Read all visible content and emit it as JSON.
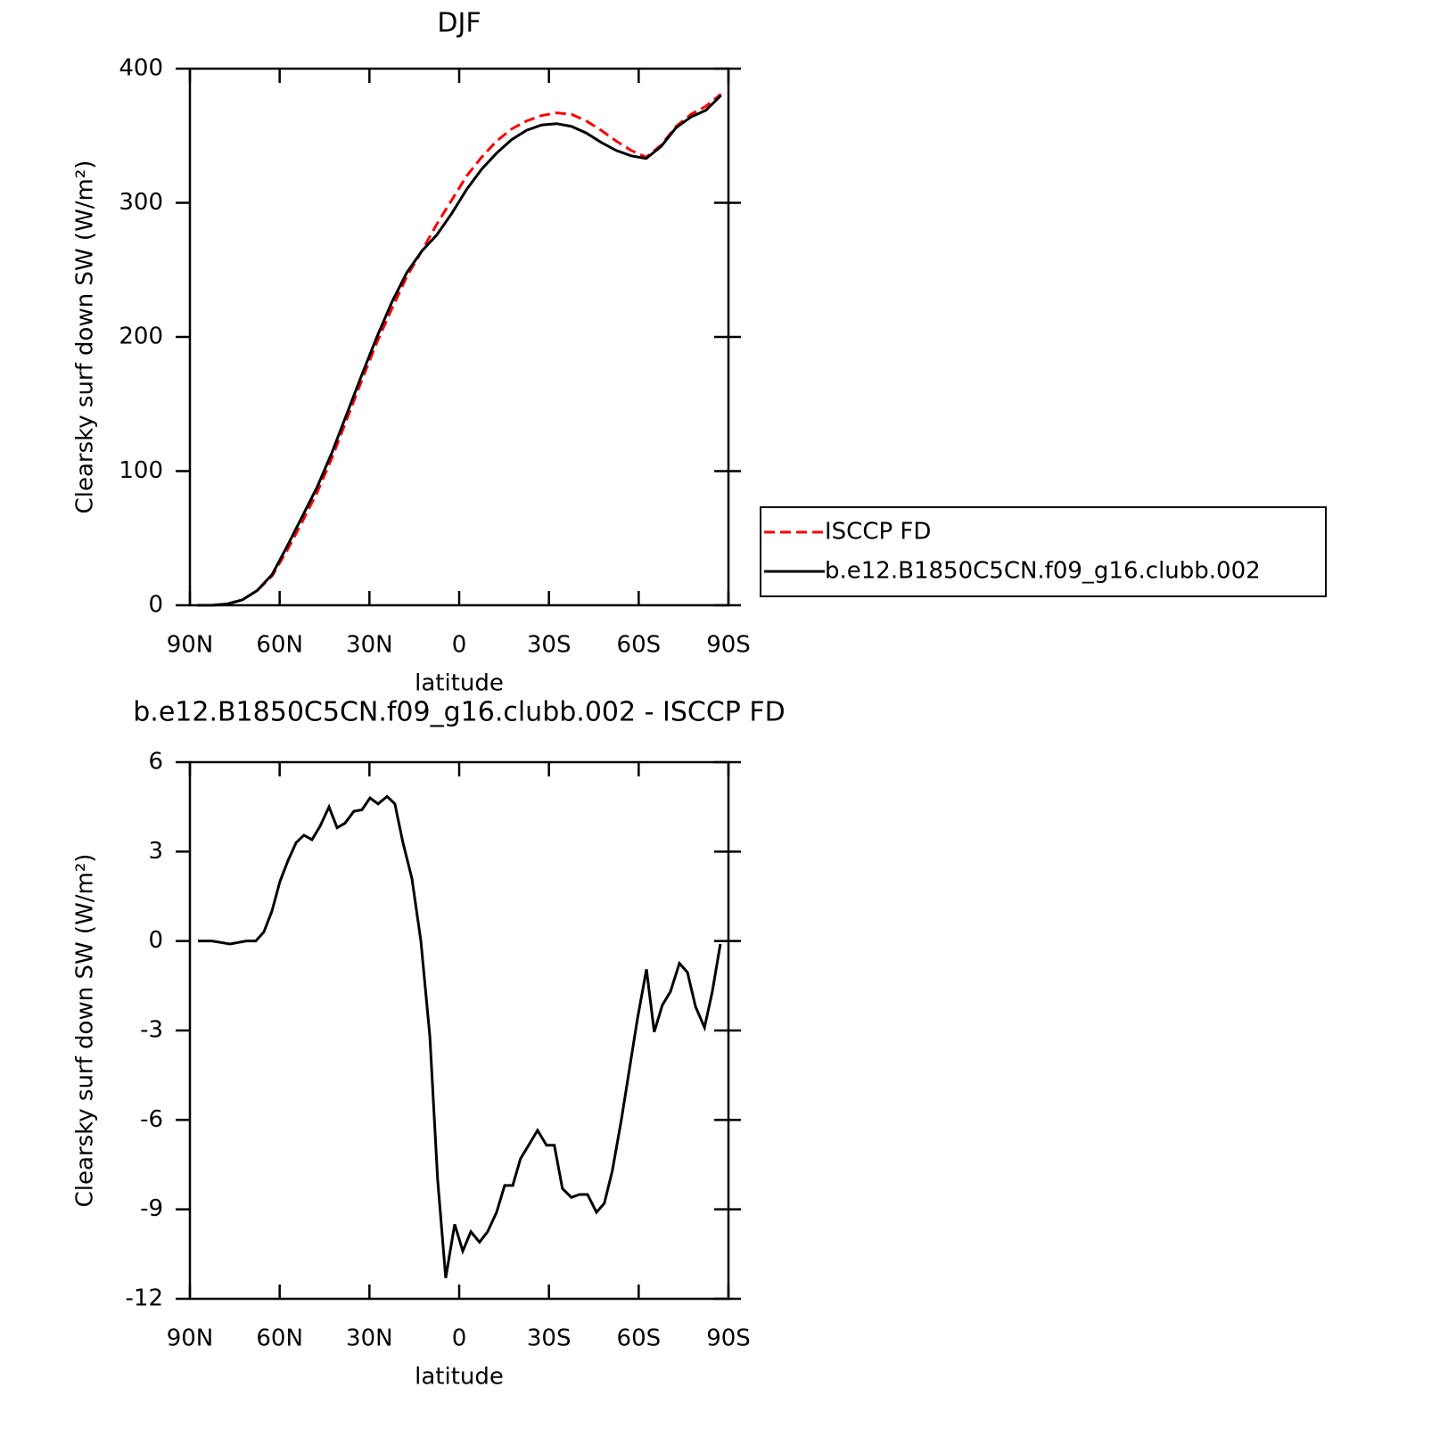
{
  "chart_data": [
    {
      "type": "line",
      "title": "DJF",
      "x_label": "latitude",
      "y_label": "Clearsky surf down SW (W/m²)",
      "xlim": [
        90,
        -90
      ],
      "xticks": [
        {
          "value": 90,
          "label": "90N"
        },
        {
          "value": 60,
          "label": "60N"
        },
        {
          "value": 30,
          "label": "30N"
        },
        0,
        {
          "value": -30,
          "label": "30S"
        },
        {
          "value": -60,
          "label": "60S"
        },
        {
          "value": -90,
          "label": "90S"
        }
      ],
      "ylim": [
        0,
        400
      ],
      "yticks": [
        0,
        100,
        200,
        300,
        400
      ],
      "legend": "outside right",
      "x": [
        87.5,
        82.5,
        77.5,
        72.5,
        67.5,
        62.5,
        57.5,
        52.5,
        47.5,
        42.5,
        37.5,
        32.5,
        27.5,
        22.5,
        17.5,
        12.5,
        7.5,
        2.5,
        -2.5,
        -7.5,
        -12.5,
        -17.5,
        -22.5,
        -27.5,
        -32.5,
        -37.5,
        -42.5,
        -47.5,
        -52.5,
        -57.5,
        -62.5,
        -67.5,
        -72.5,
        -77.5,
        -82.5,
        -87.5
      ],
      "series": [
        {
          "name": "ISCCP FD",
          "color": "#ff0000",
          "dashed": true,
          "values": [
            0,
            0,
            1,
            4,
            11,
            22,
            41,
            62,
            84,
            110,
            139,
            168,
            196,
            221,
            245,
            264,
            284,
            302,
            320,
            334,
            346,
            355,
            361,
            365,
            367,
            366,
            361,
            354,
            346,
            339,
            334,
            343,
            357,
            366,
            372,
            381
          ]
        },
        {
          "name": "b.e12.B1850C5CN.f09_g16.clubb.002",
          "color": "#000000",
          "dashed": false,
          "values": [
            0,
            0,
            1,
            4,
            11,
            23,
            44,
            66,
            88,
            114,
            143,
            172,
            200,
            226,
            248,
            264,
            276,
            292,
            310,
            325,
            337,
            347,
            354,
            358,
            359,
            357,
            352,
            345,
            339,
            335,
            333,
            342,
            356,
            364,
            369,
            380
          ]
        }
      ]
    },
    {
      "type": "line",
      "title": "b.e12.B1850C5CN.f09_g16.clubb.002 - ISCCP FD",
      "x_label": "latitude",
      "y_label": "Clearsky surf down SW (W/m²)",
      "xlim": [
        90,
        -90
      ],
      "xticks": [
        {
          "value": 90,
          "label": "90N"
        },
        {
          "value": 60,
          "label": "60N"
        },
        {
          "value": 30,
          "label": "30N"
        },
        0,
        {
          "value": -30,
          "label": "30S"
        },
        {
          "value": -60,
          "label": "60S"
        },
        {
          "value": -90,
          "label": "90S"
        }
      ],
      "ylim": [
        -12,
        6
      ],
      "yticks": [
        -12,
        -9,
        -6,
        -3,
        0,
        3,
        6
      ],
      "x": [
        87.3,
        82.6,
        76.6,
        71.2,
        68,
        65.3,
        62.6,
        59.9,
        57.2,
        54.5,
        51.9,
        49.2,
        46.5,
        43.5,
        40.8,
        38.2,
        35.2,
        32.5,
        29.8,
        27.1,
        24.1,
        21.5,
        18.8,
        15.8,
        12.8,
        9.8,
        7.2,
        4.5,
        1.5,
        -1.2,
        -3.9,
        -6.8,
        -9.5,
        -12.5,
        -15.2,
        -17.9,
        -20.5,
        -23.5,
        -26.2,
        -29.2,
        -31.8,
        -34.5,
        -37.5,
        -40.2,
        -42.9,
        -45.9,
        -48.5,
        -51.2,
        -54.2,
        -56.9,
        -59.6,
        -62.6,
        -65.2,
        -67.9,
        -70.6,
        -73.6,
        -76.3,
        -79,
        -82,
        -84.6,
        -87.3
      ],
      "series": [
        {
          "color": "#000000",
          "dashed": false,
          "values": [
            0,
            0,
            -0.1,
            0,
            0,
            0.3,
            1.0,
            2.0,
            2.7,
            3.3,
            3.55,
            3.4,
            3.85,
            4.5,
            3.8,
            3.95,
            4.35,
            4.4,
            4.8,
            4.6,
            4.85,
            4.6,
            3.3,
            2.1,
            0,
            -3.2,
            -8.0,
            -11.3,
            -9.5,
            -10.4,
            -9.75,
            -10.1,
            -9.75,
            -9.1,
            -8.2,
            -8.2,
            -7.3,
            -6.8,
            -6.35,
            -6.85,
            -6.85,
            -8.3,
            -8.6,
            -8.5,
            -8.5,
            -9.1,
            -8.8,
            -7.7,
            -6,
            -4.3,
            -2.6,
            -0.95,
            -3.05,
            -2.15,
            -1.7,
            -0.75,
            -1.05,
            -2.2,
            -2.9,
            -1.7,
            -0.1
          ]
        }
      ]
    }
  ]
}
